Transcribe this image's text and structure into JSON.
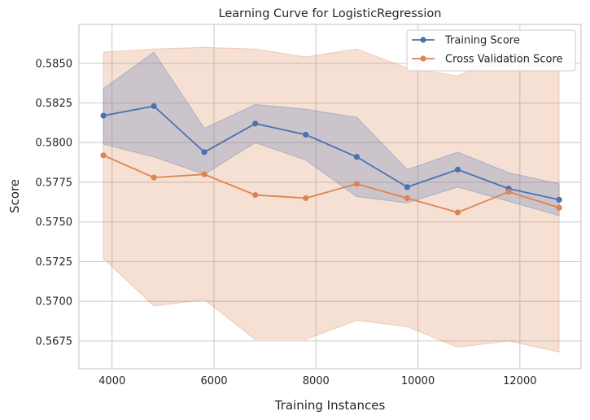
{
  "chart_data": {
    "type": "line",
    "title": "Learning Curve for LogisticRegression",
    "xlabel": "Training Instances",
    "ylabel": "Score",
    "xlim": [
      3350,
      13200
    ],
    "ylim": [
      0.56575,
      0.58745
    ],
    "xticks": [
      4000,
      6000,
      8000,
      10000,
      12000
    ],
    "yticks": [
      0.5675,
      0.57,
      0.5725,
      0.575,
      0.5775,
      0.58,
      0.5825,
      0.585
    ],
    "grid": true,
    "legend_position": "top-right",
    "x": [
      3830,
      4820,
      5810,
      6810,
      7800,
      8800,
      9790,
      10780,
      11780,
      12770
    ],
    "series": [
      {
        "name": "Training Score",
        "color": "#4c72b0",
        "values": [
          0.5817,
          0.5823,
          0.5794,
          0.5812,
          0.5805,
          0.5791,
          0.5772,
          0.5783,
          0.5771,
          0.5764
        ],
        "band_upper": [
          0.5834,
          0.5857,
          0.5809,
          0.5824,
          0.5821,
          0.5816,
          0.5783,
          0.5794,
          0.5781,
          0.5774
        ],
        "band_lower": [
          0.5799,
          0.5791,
          0.578,
          0.58,
          0.5789,
          0.5766,
          0.5762,
          0.5772,
          0.5763,
          0.5754
        ]
      },
      {
        "name": "Cross Validation Score",
        "color": "#dd8452",
        "values": [
          0.5792,
          0.5778,
          0.578,
          0.5767,
          0.5765,
          0.5774,
          0.5765,
          0.5756,
          0.5769,
          0.5759
        ],
        "band_upper": [
          0.5857,
          0.5859,
          0.586,
          0.5859,
          0.5854,
          0.5859,
          0.5847,
          0.5842,
          0.5857,
          0.585
        ],
        "band_lower": [
          0.5727,
          0.5697,
          0.5701,
          0.5676,
          0.5676,
          0.5688,
          0.5684,
          0.5671,
          0.5675,
          0.5668
        ]
      }
    ]
  }
}
